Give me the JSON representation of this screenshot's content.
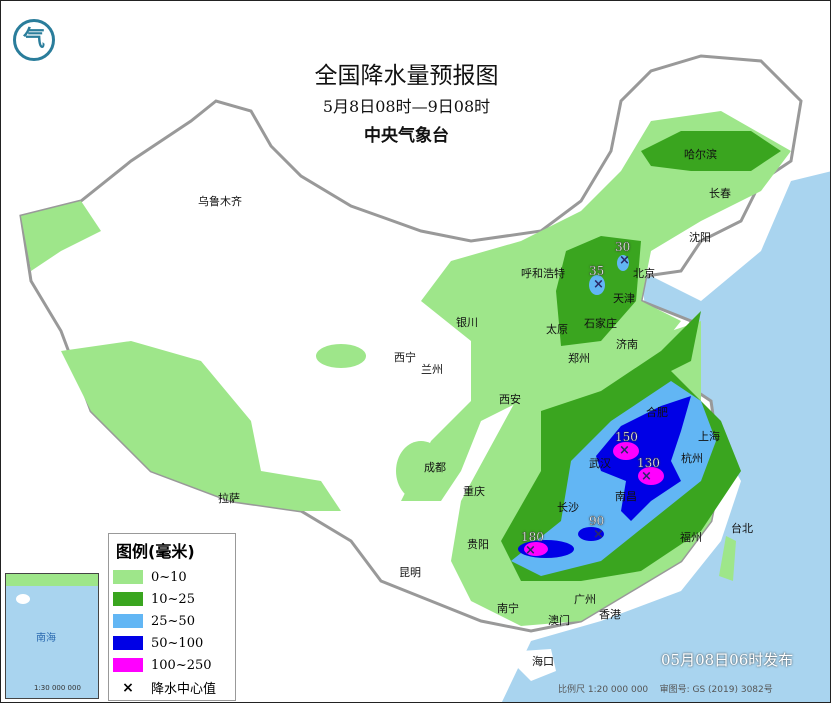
{
  "header": {
    "title": "全国降水量预报图",
    "period": "5月8日08时—9日08时",
    "issuer": "中央气象台"
  },
  "logo": {
    "name": "cma-logo",
    "text": "气"
  },
  "legend": {
    "title": "图例(毫米)",
    "items": [
      {
        "label": "0~10",
        "color": "#9ee68a"
      },
      {
        "label": "10~25",
        "color": "#3aa51f"
      },
      {
        "label": "25~50",
        "color": "#62b6f4"
      },
      {
        "label": "50~100",
        "color": "#0000e6"
      },
      {
        "label": "100~250",
        "color": "#ff00ff"
      }
    ],
    "center_label": "降水中心值",
    "center_symbol": "×"
  },
  "cities": [
    "乌鲁木齐",
    "哈尔滨",
    "长春",
    "沈阳",
    "呼和浩特",
    "北京",
    "天津",
    "石家庄",
    "太原",
    "银川",
    "西宁",
    "兰州",
    "济南",
    "郑州",
    "西安",
    "合肥",
    "上海",
    "武汉",
    "杭州",
    "南昌",
    "长沙",
    "成都",
    "重庆",
    "拉萨",
    "贵阳",
    "福州",
    "台北",
    "昆明",
    "南宁",
    "广州",
    "香港",
    "澳门",
    "海口"
  ],
  "rain_centers": [
    "30",
    "35",
    "150",
    "130",
    "90",
    "180"
  ],
  "inset": {
    "label": "南海",
    "scale": "1:30 000 000"
  },
  "footer": {
    "issued": "05月08日06时发布",
    "scale": "比例尺 1:20 000 000",
    "review_no": "审图号: GS (2019) 3082号"
  }
}
